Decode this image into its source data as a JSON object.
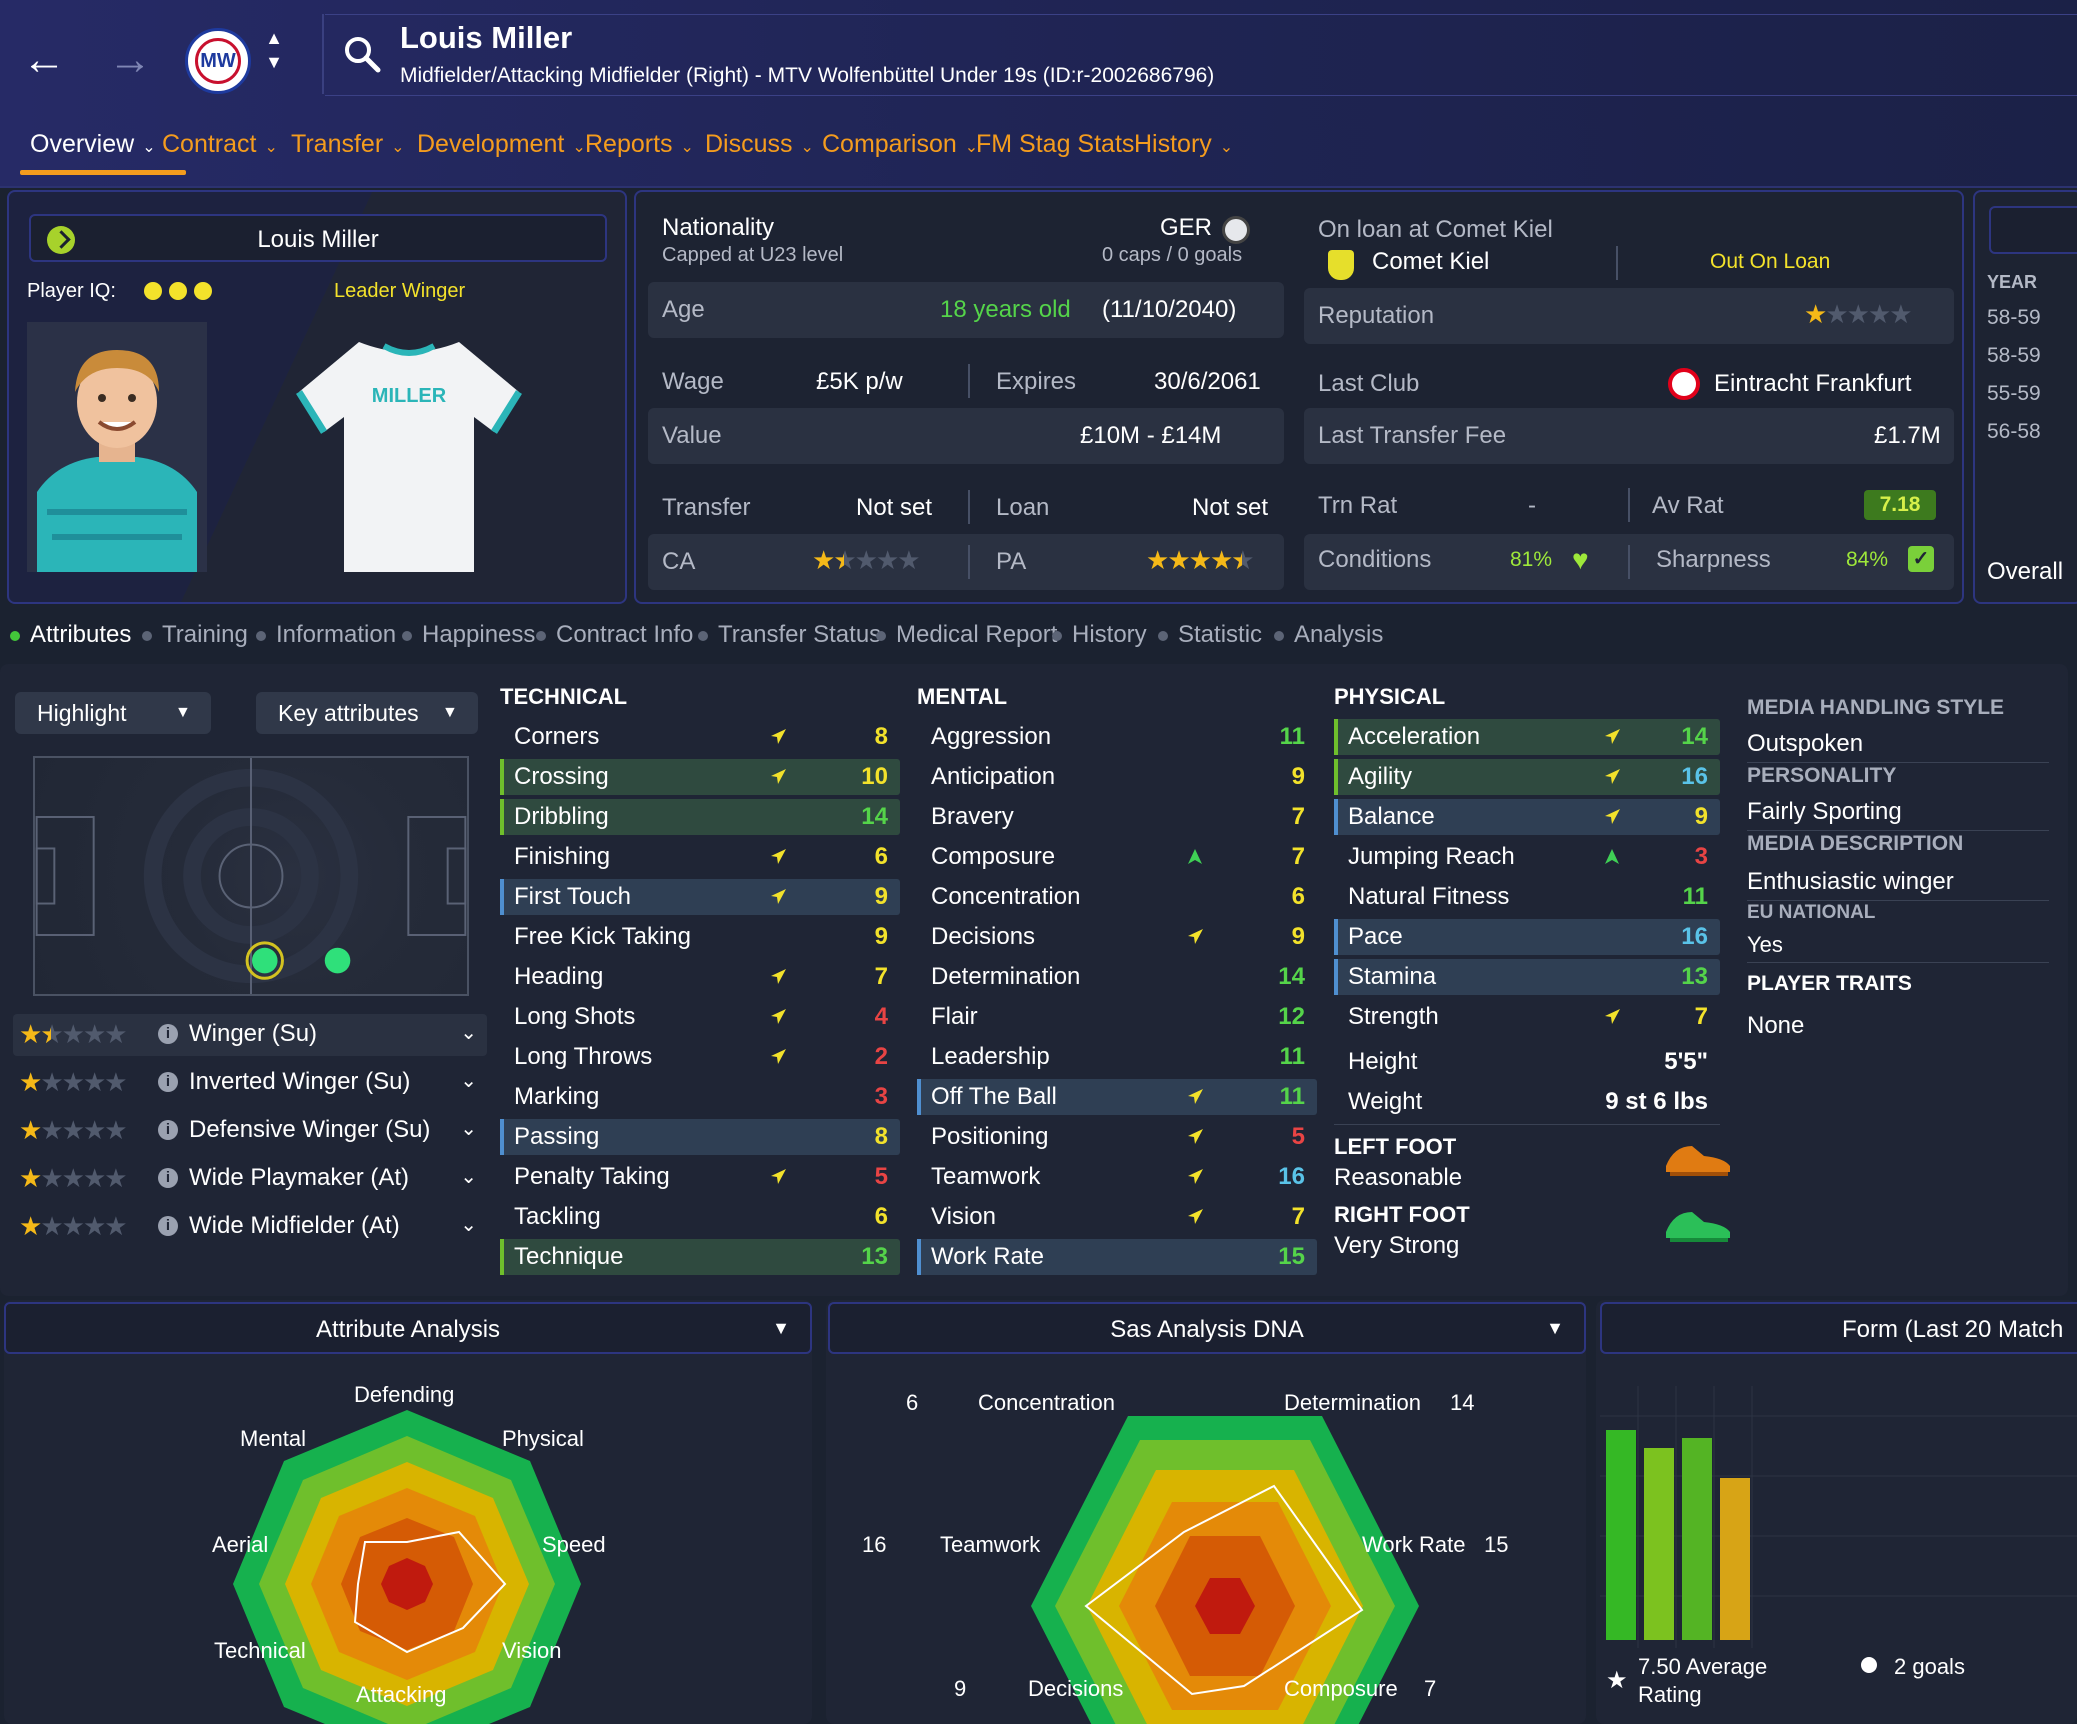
{
  "header": {
    "player_name": "Louis Miller",
    "subtitle": "Midfielder/Attacking Midfielder (Right) - MTV Wolfenbüttel Under 19s (ID:r-2002686796)",
    "tabs": [
      {
        "label": "Overview",
        "dropdown": true
      },
      {
        "label": "Contract",
        "dropdown": true
      },
      {
        "label": "Transfer",
        "dropdown": true
      },
      {
        "label": "Development",
        "dropdown": true
      },
      {
        "label": "Reports",
        "dropdown": true
      },
      {
        "label": "Discuss",
        "dropdown": true
      },
      {
        "label": "Comparison",
        "dropdown": true
      },
      {
        "label": "FM Stag Stats",
        "dropdown": false
      },
      {
        "label": "History",
        "dropdown": true
      }
    ],
    "active_tab": "Overview",
    "accent": "#f49c1e"
  },
  "card": {
    "name": "Louis Miller",
    "iq_label": "Player IQ:",
    "iq_dots": 3,
    "role_label": "Leader  Winger",
    "shirt_name": "MILLER"
  },
  "info": {
    "nationality_label": "Nationality",
    "nationality_code": "GER",
    "capped": "Capped at U23 level",
    "caps": "0 caps / 0 goals",
    "age_label": "Age",
    "age_value": "18 years old",
    "dob": "(11/10/2040)",
    "wage_label": "Wage",
    "wage_value": "£5K p/w",
    "expires_label": "Expires",
    "expires_value": "30/6/2061",
    "value_label": "Value",
    "value_value": "£10M - £14M",
    "transfer_label": "Transfer",
    "transfer_value": "Not set",
    "loan_label": "Loan",
    "loan_value": "Not set",
    "ca_label": "CA",
    "ca_stars": 1.5,
    "pa_label": "PA",
    "pa_stars": 4.5,
    "loan_title": "On loan at Comet Kiel",
    "loan_club": "Comet Kiel",
    "loan_status": "Out On Loan",
    "reputation_label": "Reputation",
    "reputation_stars": 1,
    "last_club_label": "Last Club",
    "last_club_value": "Eintracht Frankfurt",
    "fee_label": "Last Transfer Fee",
    "fee_value": "£1.7M",
    "trn_label": "Trn Rat",
    "trn_value": "-",
    "avrat_label": "Av Rat",
    "avrat_value": "7.18",
    "conditions_label": "Conditions",
    "conditions_value": "81%",
    "sharpness_label": "Sharpness",
    "sharpness_value": "84%"
  },
  "side_stub": {
    "year_label": "YEAR",
    "years": [
      "58-59",
      "58-59",
      "55-59",
      "56-58"
    ],
    "overall": "Overall"
  },
  "subtabs": [
    "Attributes",
    "Training",
    "Information",
    "Happiness",
    "Contract Info",
    "Transfer Status",
    "Medical Report",
    "History",
    "Statistic",
    "Analysis"
  ],
  "controls": {
    "highlight": "Highlight",
    "key_attributes": "Key attributes"
  },
  "roles": [
    {
      "name": "Winger (Su)",
      "stars": 1.5
    },
    {
      "name": "Inverted Winger (Su)",
      "stars": 1
    },
    {
      "name": "Defensive Winger (Su)",
      "stars": 1
    },
    {
      "name": "Wide Playmaker (At)",
      "stars": 1
    },
    {
      "name": "Wide Midfielder (At)",
      "stars": 1
    }
  ],
  "technical": {
    "title": "TECHNICAL",
    "items": [
      {
        "name": "Corners",
        "value": 8,
        "arrow": "up",
        "hl": ""
      },
      {
        "name": "Crossing",
        "value": 10,
        "arrow": "up",
        "hl": "g"
      },
      {
        "name": "Dribbling",
        "value": 14,
        "arrow": "",
        "hl": "g"
      },
      {
        "name": "Finishing",
        "value": 6,
        "arrow": "up",
        "hl": ""
      },
      {
        "name": "First Touch",
        "value": 9,
        "arrow": "up",
        "hl": "b"
      },
      {
        "name": "Free Kick Taking",
        "value": 9,
        "arrow": "",
        "hl": ""
      },
      {
        "name": "Heading",
        "value": 7,
        "arrow": "up",
        "hl": ""
      },
      {
        "name": "Long Shots",
        "value": 4,
        "arrow": "up",
        "hl": ""
      },
      {
        "name": "Long Throws",
        "value": 2,
        "arrow": "up",
        "hl": ""
      },
      {
        "name": "Marking",
        "value": 3,
        "arrow": "",
        "hl": ""
      },
      {
        "name": "Passing",
        "value": 8,
        "arrow": "",
        "hl": "b"
      },
      {
        "name": "Penalty Taking",
        "value": 5,
        "arrow": "up",
        "hl": ""
      },
      {
        "name": "Tackling",
        "value": 6,
        "arrow": "",
        "hl": ""
      },
      {
        "name": "Technique",
        "value": 13,
        "arrow": "",
        "hl": "g"
      }
    ]
  },
  "mental": {
    "title": "MENTAL",
    "items": [
      {
        "name": "Aggression",
        "value": 11,
        "arrow": "",
        "hl": ""
      },
      {
        "name": "Anticipation",
        "value": 9,
        "arrow": "",
        "hl": ""
      },
      {
        "name": "Bravery",
        "value": 7,
        "arrow": "",
        "hl": ""
      },
      {
        "name": "Composure",
        "value": 7,
        "arrow": "green",
        "hl": ""
      },
      {
        "name": "Concentration",
        "value": 6,
        "arrow": "",
        "hl": ""
      },
      {
        "name": "Decisions",
        "value": 9,
        "arrow": "up",
        "hl": ""
      },
      {
        "name": "Determination",
        "value": 14,
        "arrow": "",
        "hl": ""
      },
      {
        "name": "Flair",
        "value": 12,
        "arrow": "",
        "hl": ""
      },
      {
        "name": "Leadership",
        "value": 11,
        "arrow": "",
        "hl": ""
      },
      {
        "name": "Off The Ball",
        "value": 11,
        "arrow": "up",
        "hl": "b"
      },
      {
        "name": "Positioning",
        "value": 5,
        "arrow": "up",
        "hl": ""
      },
      {
        "name": "Teamwork",
        "value": 16,
        "arrow": "up",
        "hl": ""
      },
      {
        "name": "Vision",
        "value": 7,
        "arrow": "up",
        "hl": ""
      },
      {
        "name": "Work Rate",
        "value": 15,
        "arrow": "",
        "hl": "b"
      }
    ]
  },
  "physical": {
    "title": "PHYSICAL",
    "items": [
      {
        "name": "Acceleration",
        "value": 14,
        "arrow": "up",
        "hl": "g"
      },
      {
        "name": "Agility",
        "value": 16,
        "arrow": "up",
        "hl": "g"
      },
      {
        "name": "Balance",
        "value": 9,
        "arrow": "up",
        "hl": "b"
      },
      {
        "name": "Jumping Reach",
        "value": 3,
        "arrow": "green",
        "hl": ""
      },
      {
        "name": "Natural Fitness",
        "value": 11,
        "arrow": "",
        "hl": ""
      },
      {
        "name": "Pace",
        "value": 16,
        "arrow": "",
        "hl": "b"
      },
      {
        "name": "Stamina",
        "value": 13,
        "arrow": "",
        "hl": "b"
      },
      {
        "name": "Strength",
        "value": 7,
        "arrow": "up",
        "hl": ""
      }
    ],
    "height_label": "Height",
    "height_value": "5'5\"",
    "weight_label": "Weight",
    "weight_value": "9 st 6 lbs",
    "left_foot_label": "LEFT FOOT",
    "left_foot_value": "Reasonable",
    "right_foot_label": "RIGHT FOOT",
    "right_foot_value": "Very Strong"
  },
  "side": {
    "media_style_label": "MEDIA HANDLING STYLE",
    "media_style_value": "Outspoken",
    "personality_label": "PERSONALITY",
    "personality_value": "Fairly Sporting",
    "media_desc_label": "MEDIA DESCRIPTION",
    "media_desc_value": "Enthusiastic winger",
    "eu_label": "EU NATIONAL",
    "eu_value": "Yes",
    "traits_label": "PLAYER TRAITS",
    "traits_value": "None"
  },
  "attribute_analysis": {
    "title": "Attribute Analysis",
    "labels": [
      "Defending",
      "Physical",
      "Speed",
      "Vision",
      "Attacking",
      "Technical",
      "Aerial",
      "Mental"
    ]
  },
  "dna": {
    "title": "Sas Analysis DNA",
    "labels": [
      "Concentration",
      "Determination",
      "Work Rate",
      "Composure",
      "Decisions",
      "Teamwork"
    ],
    "values": [
      "6",
      "14",
      "15",
      "7",
      "9",
      "16"
    ]
  },
  "form": {
    "title": "Form (Last 20 Match",
    "avg": "7.50 Average",
    "avg2": "Rating",
    "goals": "2 goals"
  }
}
